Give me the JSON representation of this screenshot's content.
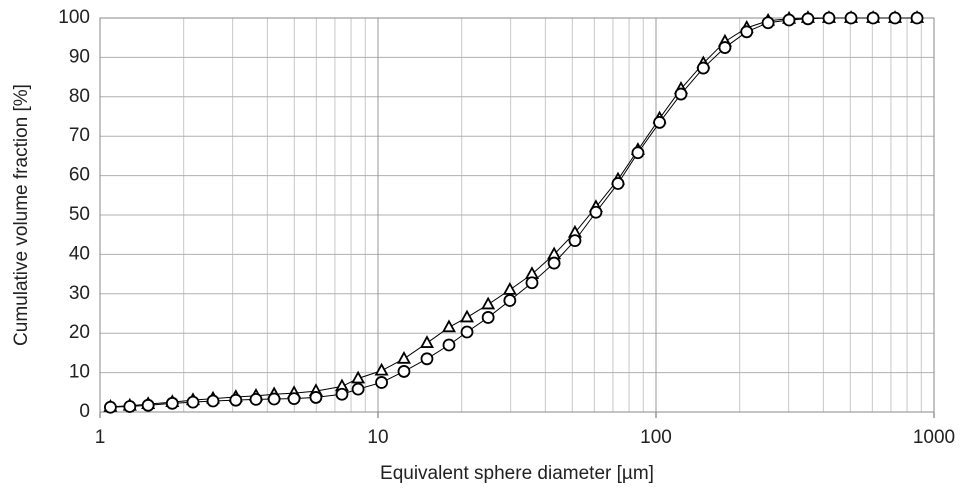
{
  "chart_data": {
    "type": "line",
    "xlabel": "Equivalent sphere diameter [µm]",
    "ylabel": "Cumulative volume fraction [%]",
    "xscale": "log",
    "grid": true,
    "xlim": [
      1,
      1000
    ],
    "xticks": [
      1,
      10,
      100,
      1000
    ],
    "ylim": [
      0,
      100
    ],
    "yticks": [
      0,
      10,
      20,
      30,
      40,
      50,
      60,
      70,
      80,
      90,
      100
    ],
    "x": [
      1.09,
      1.28,
      1.49,
      1.82,
      2.16,
      2.55,
      3.08,
      3.64,
      4.23,
      4.99,
      5.98,
      7.42,
      8.48,
      10.3,
      12.4,
      15.0,
      18.0,
      20.9,
      24.9,
      29.8,
      35.8,
      43.0,
      51.1,
      60.8,
      73.0,
      86.1,
      103,
      123,
      148,
      177,
      212,
      253,
      301,
      352,
      419,
      503,
      604,
      724,
      869
    ],
    "series": [
      {
        "marker": "triangle",
        "color": "#000000",
        "values": [
          1.3,
          1.6,
          2.0,
          2.5,
          3.0,
          3.4,
          3.8,
          4.1,
          4.5,
          4.8,
          5.3,
          6.5,
          8.5,
          10.5,
          13.5,
          17.5,
          21.5,
          24.0,
          27.3,
          31.0,
          35.0,
          40.0,
          45.5,
          52.0,
          59.0,
          66.5,
          74.5,
          82.0,
          88.5,
          94.0,
          97.5,
          99.3,
          99.8,
          100,
          100,
          100,
          100,
          100,
          100
        ]
      },
      {
        "marker": "circle",
        "color": "#000000",
        "values": [
          1.2,
          1.4,
          1.7,
          2.2,
          2.5,
          2.8,
          3.0,
          3.2,
          3.3,
          3.4,
          3.7,
          4.5,
          5.8,
          7.5,
          10.3,
          13.5,
          17.0,
          20.3,
          24.0,
          28.3,
          32.8,
          37.8,
          43.5,
          50.7,
          58.0,
          65.8,
          73.5,
          80.7,
          87.3,
          92.5,
          96.5,
          98.8,
          99.5,
          99.8,
          100,
          100,
          100,
          100,
          100
        ]
      }
    ]
  }
}
